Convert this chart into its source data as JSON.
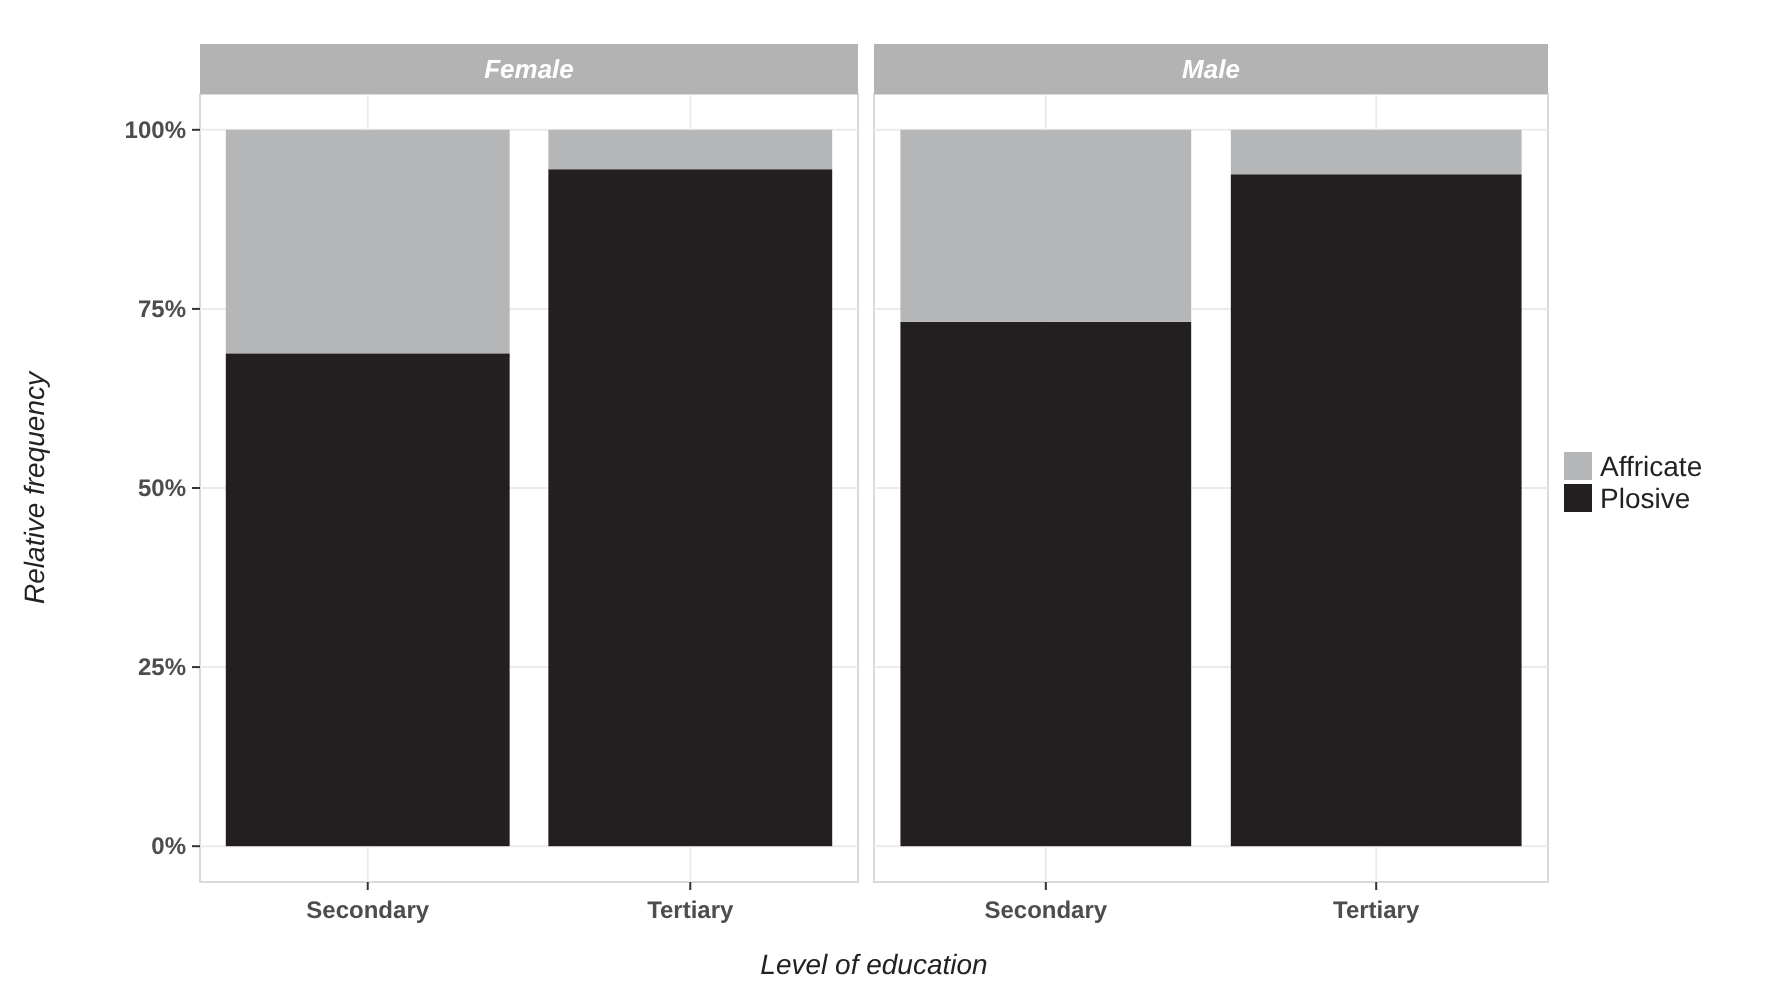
{
  "chart_data": [
    {
      "type": "bar",
      "title": "Female",
      "xlabel": "Level of education",
      "ylabel": "Relative frequency",
      "categories": [
        "Secondary",
        "Tertiary"
      ],
      "stacked": true,
      "ylim": [
        -5,
        105
      ],
      "yticks": [
        {
          "value": 0,
          "label": "0%"
        },
        {
          "value": 25,
          "label": "25%"
        },
        {
          "value": 50,
          "label": "50%"
        },
        {
          "value": 75,
          "label": "75%"
        },
        {
          "value": 100,
          "label": "100%"
        }
      ],
      "grid": true,
      "series": [
        {
          "color": "#231f20",
          "values": [
            68.8,
            94.5
          ]
        },
        {
          "color": "#b5b6b8",
          "values": [
            31.2,
            5.5
          ]
        }
      ]
    },
    {
      "type": "bar",
      "title": "Male",
      "categories": [
        "Secondary",
        "Tertiary"
      ],
      "stacked": true,
      "ylim": [
        -5,
        105
      ],
      "yticks": [
        {
          "value": 0,
          "label": null
        },
        {
          "value": 25,
          "label": null
        },
        {
          "value": 50,
          "label": null
        },
        {
          "value": 75,
          "label": null
        },
        {
          "value": 100,
          "label": null
        }
      ],
      "grid": true,
      "tick_labels": "x",
      "legend": "right",
      "series": [
        {
          "name": "Plosive",
          "color": "#231f20",
          "values": [
            73.2,
            93.8
          ]
        },
        {
          "name": "Affricate",
          "color": "#b5b6b8",
          "values": [
            26.8,
            6.2
          ]
        }
      ]
    }
  ]
}
